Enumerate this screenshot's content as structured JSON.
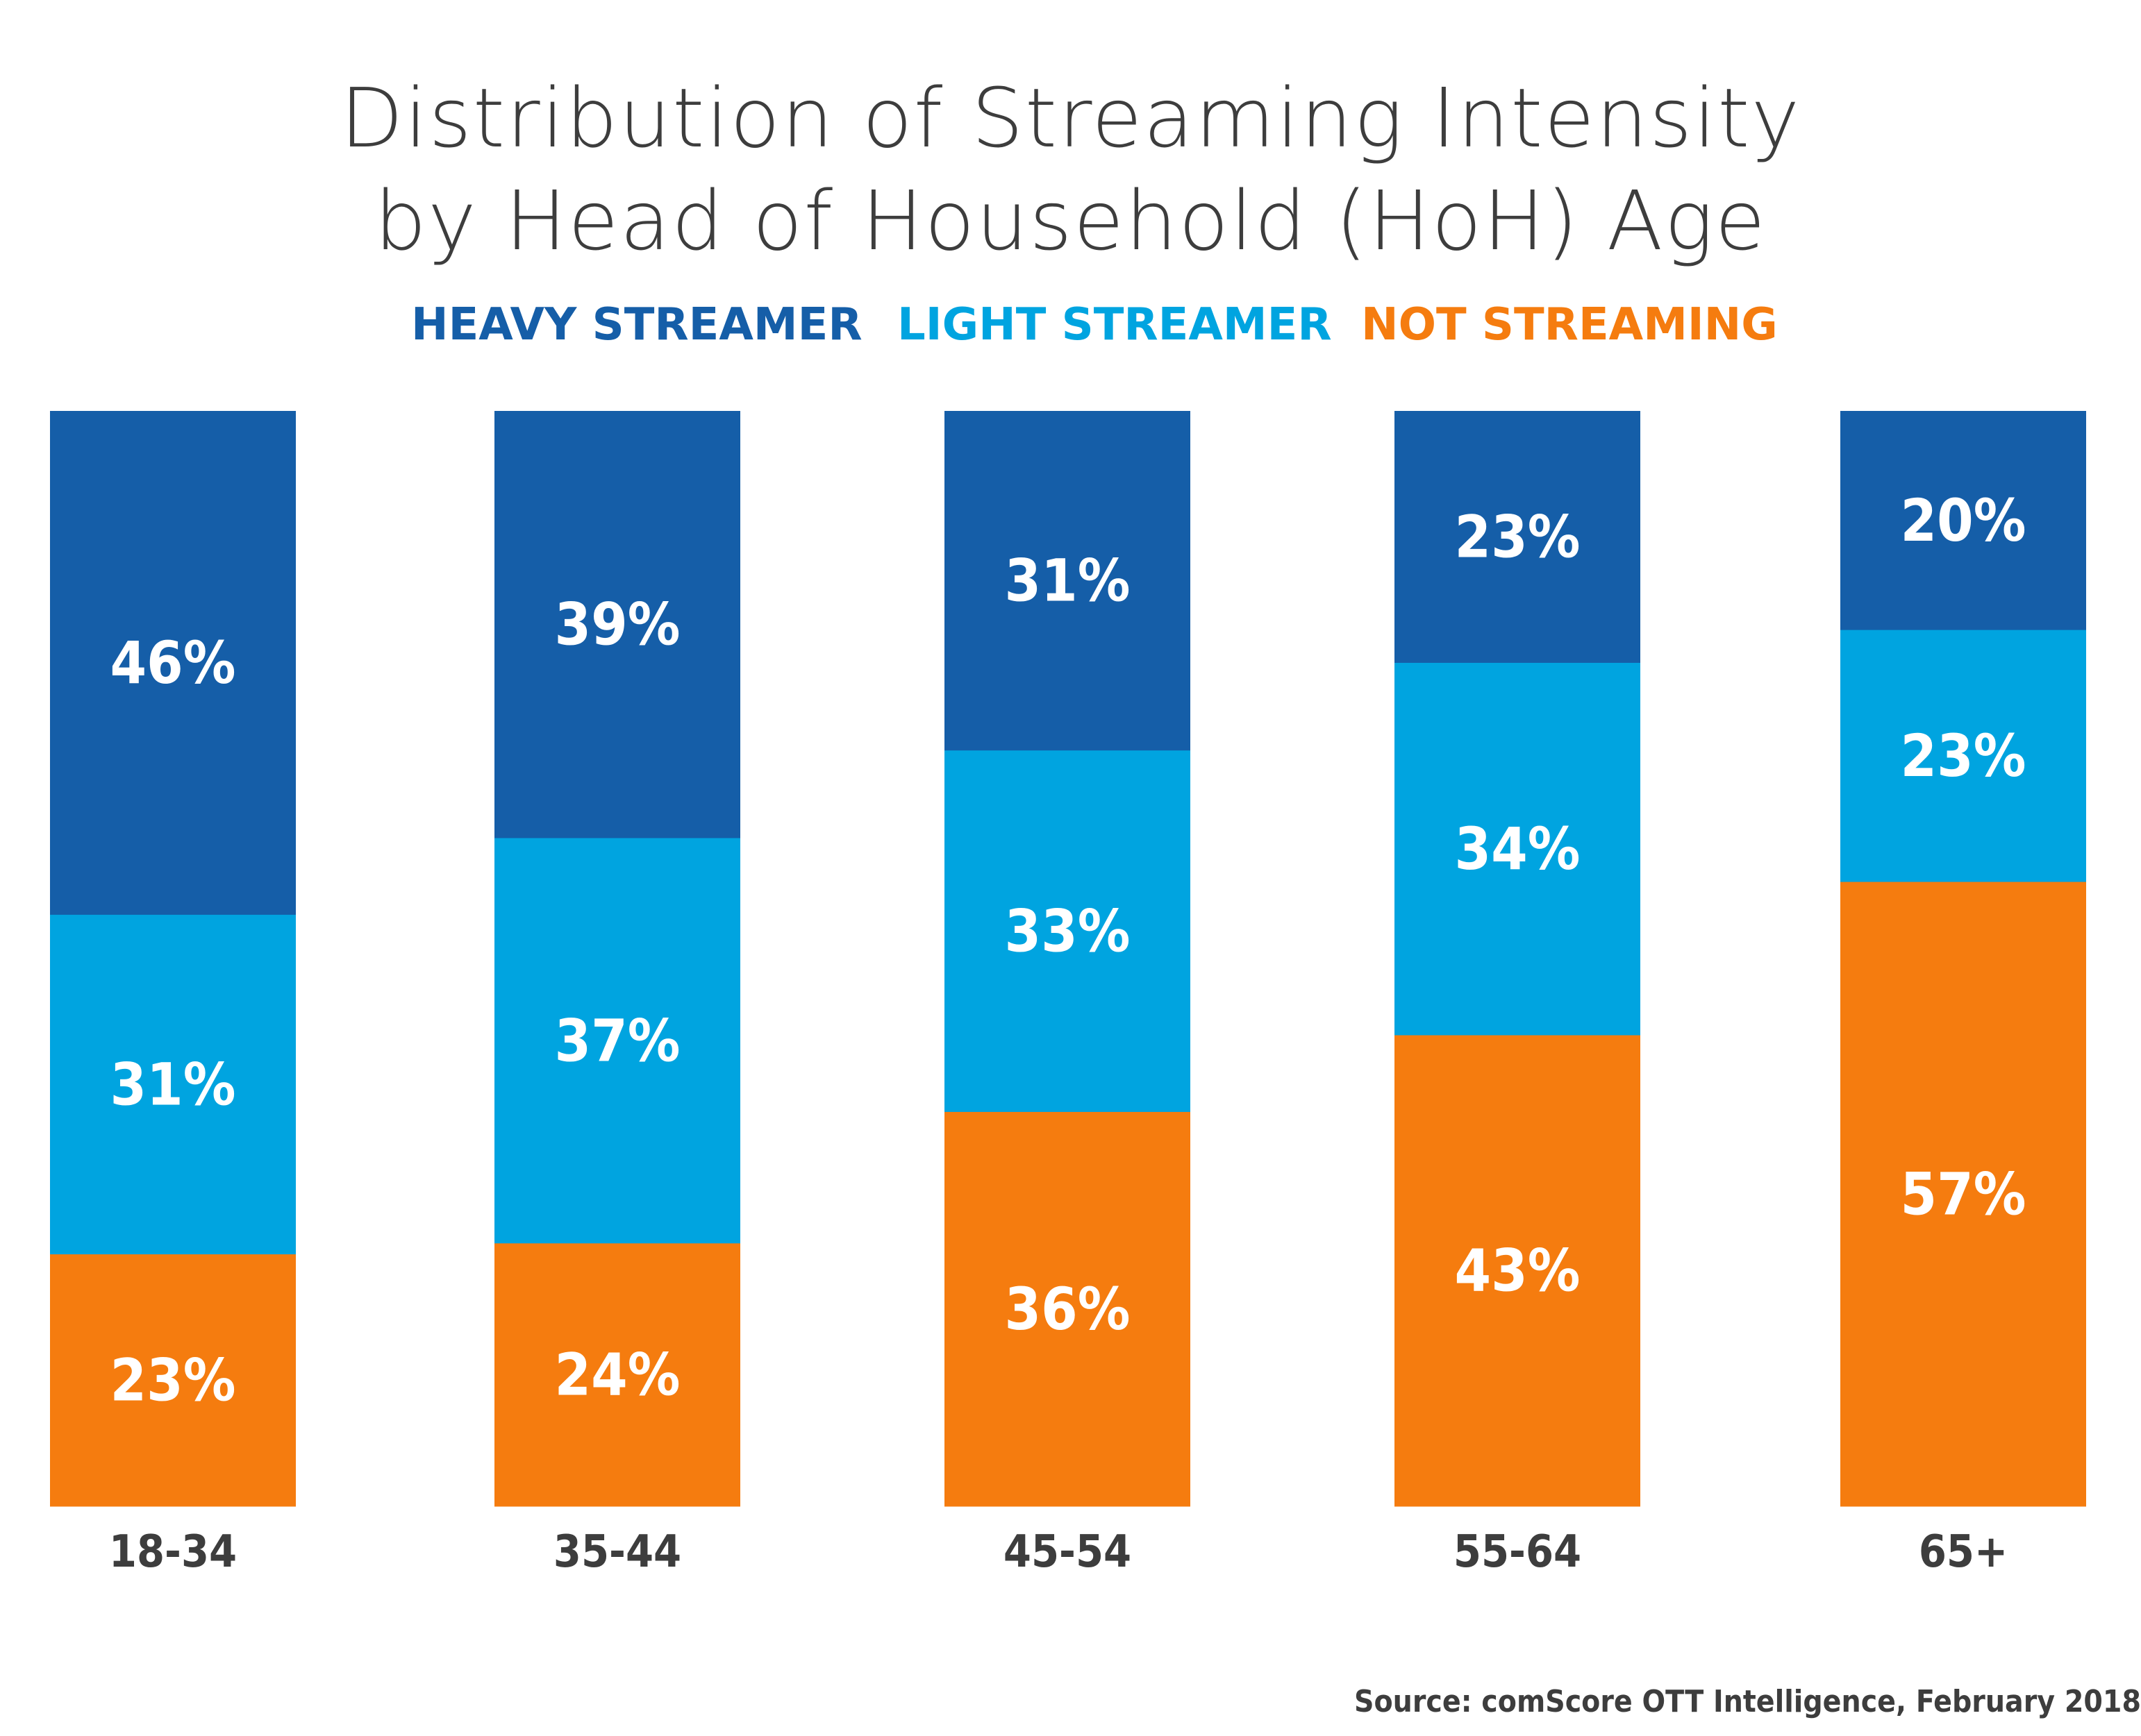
{
  "chart_data": {
    "type": "bar",
    "stacked": true,
    "orientation": "vertical",
    "title": [
      "Distribution of Streaming Intensity",
      "by Head of Household (HoH) Age"
    ],
    "categories": [
      "18-34",
      "35-44",
      "45-54",
      "55-64",
      "65+"
    ],
    "series": [
      {
        "name": "HEAVY STREAMER",
        "color": "#155EA8",
        "values": [
          46,
          39,
          31,
          23,
          20
        ],
        "labels": [
          "46%",
          "39%",
          "31%",
          "23%",
          "20%"
        ]
      },
      {
        "name": "LIGHT STREAMER",
        "color": "#00A4E0",
        "values": [
          31,
          37,
          33,
          34,
          23
        ],
        "labels": [
          "31%",
          "37%",
          "33%",
          "34%",
          "23%"
        ]
      },
      {
        "name": "NOT STREAMING",
        "color": "#F57C0F",
        "values": [
          23,
          24,
          36,
          43,
          57
        ],
        "labels": [
          "23%",
          "24%",
          "36%",
          "43%",
          "57%"
        ]
      }
    ],
    "legend_position": "top",
    "ylim": [
      0,
      100
    ],
    "grid": false,
    "source": "Source: comScore OTT Intelligence, February 2018"
  },
  "colors": {
    "title_text": "#3D3D3D",
    "axis_label_text": "#3D3D3D",
    "data_label_text": "#FFFFFF",
    "background": "#FFFFFF"
  }
}
